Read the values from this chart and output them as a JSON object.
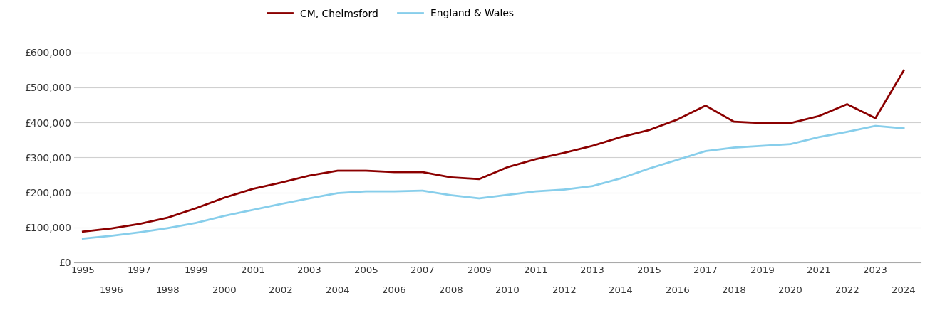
{
  "years": [
    1995,
    1996,
    1997,
    1998,
    1999,
    2000,
    2001,
    2002,
    2003,
    2004,
    2005,
    2006,
    2007,
    2008,
    2009,
    2010,
    2011,
    2012,
    2013,
    2014,
    2015,
    2016,
    2017,
    2018,
    2019,
    2020,
    2021,
    2022,
    2023,
    2024
  ],
  "chelmsford": [
    88000,
    97000,
    110000,
    128000,
    155000,
    185000,
    210000,
    228000,
    248000,
    262000,
    262000,
    258000,
    258000,
    243000,
    238000,
    272000,
    295000,
    313000,
    333000,
    358000,
    378000,
    408000,
    448000,
    402000,
    398000,
    398000,
    418000,
    452000,
    412000,
    548000
  ],
  "england_wales": [
    68000,
    76000,
    86000,
    98000,
    113000,
    133000,
    150000,
    167000,
    183000,
    198000,
    203000,
    203000,
    205000,
    192000,
    183000,
    193000,
    203000,
    208000,
    218000,
    240000,
    268000,
    293000,
    318000,
    328000,
    333000,
    338000,
    358000,
    373000,
    390000,
    383000
  ],
  "chelmsford_color": "#8B0000",
  "england_wales_color": "#87CEEB",
  "legend_labels": [
    "CM, Chelmsford",
    "England & Wales"
  ],
  "ytick_labels": [
    "£0",
    "£100,000",
    "£200,000",
    "£300,000",
    "£400,000",
    "£500,000",
    "£600,000"
  ],
  "ytick_values": [
    0,
    100000,
    200000,
    300000,
    400000,
    500000,
    600000
  ],
  "ylim": [
    0,
    640000
  ],
  "odd_xticks": [
    1995,
    1997,
    1999,
    2001,
    2003,
    2005,
    2007,
    2009,
    2011,
    2013,
    2015,
    2017,
    2019,
    2021,
    2023
  ],
  "even_xticks": [
    1996,
    1998,
    2000,
    2002,
    2004,
    2006,
    2008,
    2010,
    2012,
    2014,
    2016,
    2018,
    2020,
    2022,
    2024
  ],
  "line_width": 2.0,
  "background_color": "#ffffff",
  "grid_color": "#d0d0d0"
}
